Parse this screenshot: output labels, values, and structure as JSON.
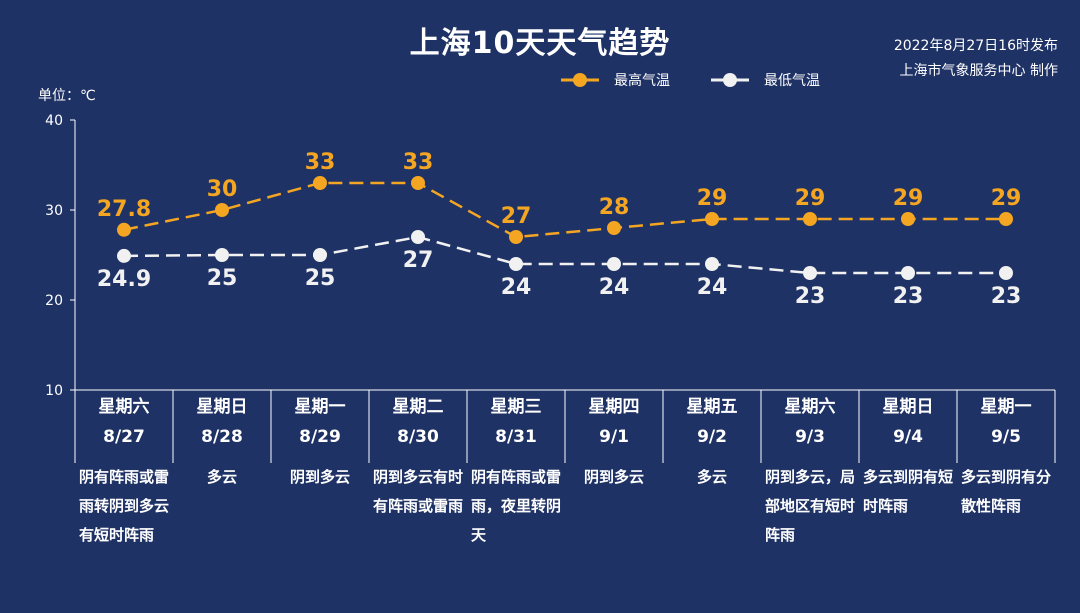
{
  "header": {
    "title": "上海10天天气趋势",
    "issue_time": "2022年8月27日16时发布",
    "issuer": "上海市气象服务中心 制作"
  },
  "colors": {
    "background": "#1f3265",
    "max": "#f4a622",
    "min": "#f1f1f1"
  },
  "chart_data": {
    "type": "line",
    "unit_label": "单位：℃",
    "ylim": [
      10,
      40
    ],
    "yticks": [
      10,
      20,
      30,
      40
    ],
    "legend_position": "top-right",
    "categories": [
      "8/27",
      "8/28",
      "8/29",
      "8/30",
      "8/31",
      "9/1",
      "9/2",
      "9/3",
      "9/4",
      "9/5"
    ],
    "series": [
      {
        "name": "最高气温",
        "values": [
          27.8,
          30,
          33,
          33,
          27,
          28,
          29,
          29,
          29,
          29
        ],
        "labels": [
          "27.8",
          "30",
          "33",
          "33",
          "27",
          "28",
          "29",
          "29",
          "29",
          "29"
        ]
      },
      {
        "name": "最低气温",
        "values": [
          24.9,
          25,
          25,
          27,
          24,
          24,
          24,
          23,
          23,
          23
        ],
        "labels": [
          "24.9",
          "25",
          "25",
          "27",
          "24",
          "24",
          "24",
          "23",
          "23",
          "23"
        ]
      }
    ]
  },
  "days": [
    {
      "weekday": "星期六",
      "date": "8/27",
      "weather": "阴有阵雨或雷雨转阴到多云有短时阵雨"
    },
    {
      "weekday": "星期日",
      "date": "8/28",
      "weather": "多云"
    },
    {
      "weekday": "星期一",
      "date": "8/29",
      "weather": "阴到多云"
    },
    {
      "weekday": "星期二",
      "date": "8/30",
      "weather": "阴到多云有时有阵雨或雷雨"
    },
    {
      "weekday": "星期三",
      "date": "8/31",
      "weather": "阴有阵雨或雷雨，夜里转阴天"
    },
    {
      "weekday": "星期四",
      "date": "9/1",
      "weather": "阴到多云"
    },
    {
      "weekday": "星期五",
      "date": "9/2",
      "weather": "多云"
    },
    {
      "weekday": "星期六",
      "date": "9/3",
      "weather": "阴到多云，局部地区有短时阵雨"
    },
    {
      "weekday": "星期日",
      "date": "9/4",
      "weather": "多云到阴有短时阵雨"
    },
    {
      "weekday": "星期一",
      "date": "9/5",
      "weather": "多云到阴有分散性阵雨"
    }
  ]
}
